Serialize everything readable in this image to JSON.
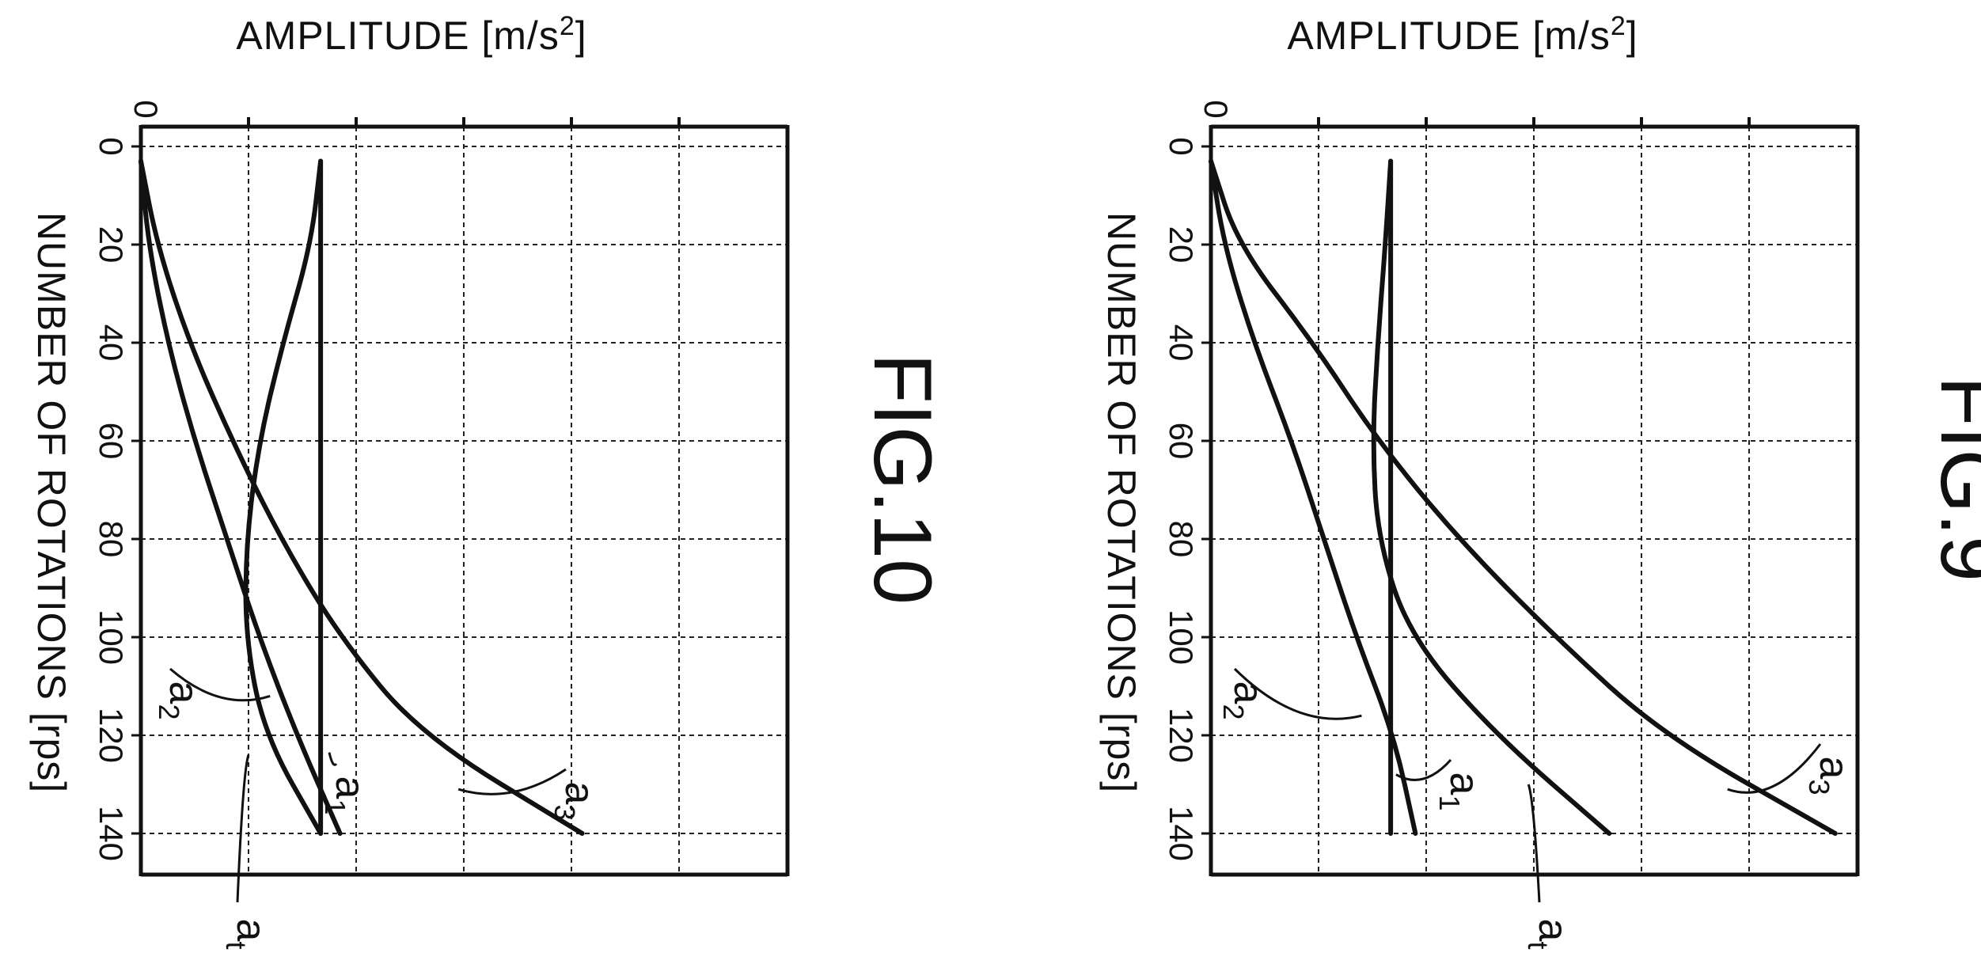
{
  "chart_data": [
    {
      "type": "line",
      "title": "FIG.10",
      "xlabel": "NUMBER OF ROTATIONS [rps]",
      "ylabel": "AMPLITUDE [m/s²]",
      "amplitude_label_text": "AMPLITUDE",
      "amplitude_unit_text": "[m/s",
      "amplitude_unit_sup": "2",
      "amplitude_unit_close": "]",
      "amplitude_tick_labels": [
        "0"
      ],
      "x_ticks": [
        0,
        20,
        40,
        60,
        80,
        100,
        120,
        140
      ],
      "xlim": [
        0,
        145
      ],
      "ylim": [
        0,
        6
      ],
      "grid": true,
      "series": [
        {
          "name": "a",
          "sub": "1",
          "x": [
            3,
            20,
            40,
            60,
            80,
            100,
            120,
            140
          ],
          "values": [
            1.67,
            1.67,
            1.67,
            1.67,
            1.67,
            1.67,
            1.67,
            1.67
          ]
        },
        {
          "name": "a",
          "sub": "2",
          "x": [
            3,
            20,
            40,
            60,
            80,
            100,
            120,
            140
          ],
          "values": [
            0,
            0.07,
            0.25,
            0.5,
            0.8,
            1.1,
            1.45,
            1.85
          ]
        },
        {
          "name": "a",
          "sub": "3",
          "x": [
            3,
            20,
            40,
            60,
            80,
            100,
            120,
            140
          ],
          "values": [
            0,
            0.15,
            0.45,
            0.85,
            1.3,
            1.85,
            2.6,
            4.1
          ]
        },
        {
          "name": "a",
          "sub": "t",
          "x": [
            3,
            20,
            40,
            60,
            80,
            100,
            120,
            140
          ],
          "values": [
            1.67,
            1.58,
            1.32,
            1.1,
            0.98,
            0.97,
            1.15,
            1.67
          ]
        }
      ]
    },
    {
      "type": "line",
      "title": "FIG.9",
      "xlabel": "NUMBER OF ROTATIONS [rps]",
      "ylabel": "AMPLITUDE [m/s²]",
      "amplitude_label_text": "AMPLITUDE",
      "amplitude_unit_text": "[m/s",
      "amplitude_unit_sup": "2",
      "amplitude_unit_close": "]",
      "amplitude_tick_labels": [
        "0"
      ],
      "x_ticks": [
        0,
        20,
        40,
        60,
        80,
        100,
        120,
        140
      ],
      "xlim": [
        0,
        145
      ],
      "ylim": [
        0,
        6
      ],
      "grid": true,
      "series": [
        {
          "name": "a",
          "sub": "1",
          "x": [
            3,
            20,
            40,
            60,
            80,
            100,
            120,
            140
          ],
          "values": [
            1.67,
            1.67,
            1.67,
            1.67,
            1.67,
            1.67,
            1.67,
            1.67
          ]
        },
        {
          "name": "a",
          "sub": "2",
          "x": [
            3,
            20,
            40,
            60,
            80,
            100,
            120,
            140
          ],
          "values": [
            0,
            0.12,
            0.4,
            0.75,
            1.05,
            1.35,
            1.7,
            1.9
          ]
        },
        {
          "name": "a",
          "sub": "3",
          "x": [
            3,
            20,
            40,
            60,
            80,
            100,
            120,
            140
          ],
          "values": [
            0,
            0.25,
            0.95,
            1.55,
            2.3,
            3.2,
            4.2,
            5.8
          ]
        },
        {
          "name": "a",
          "sub": "t",
          "x": [
            3,
            20,
            40,
            60,
            80,
            100,
            120,
            140
          ],
          "values": [
            1.67,
            1.62,
            1.55,
            1.5,
            1.55,
            1.85,
            2.65,
            3.7
          ]
        }
      ]
    }
  ]
}
